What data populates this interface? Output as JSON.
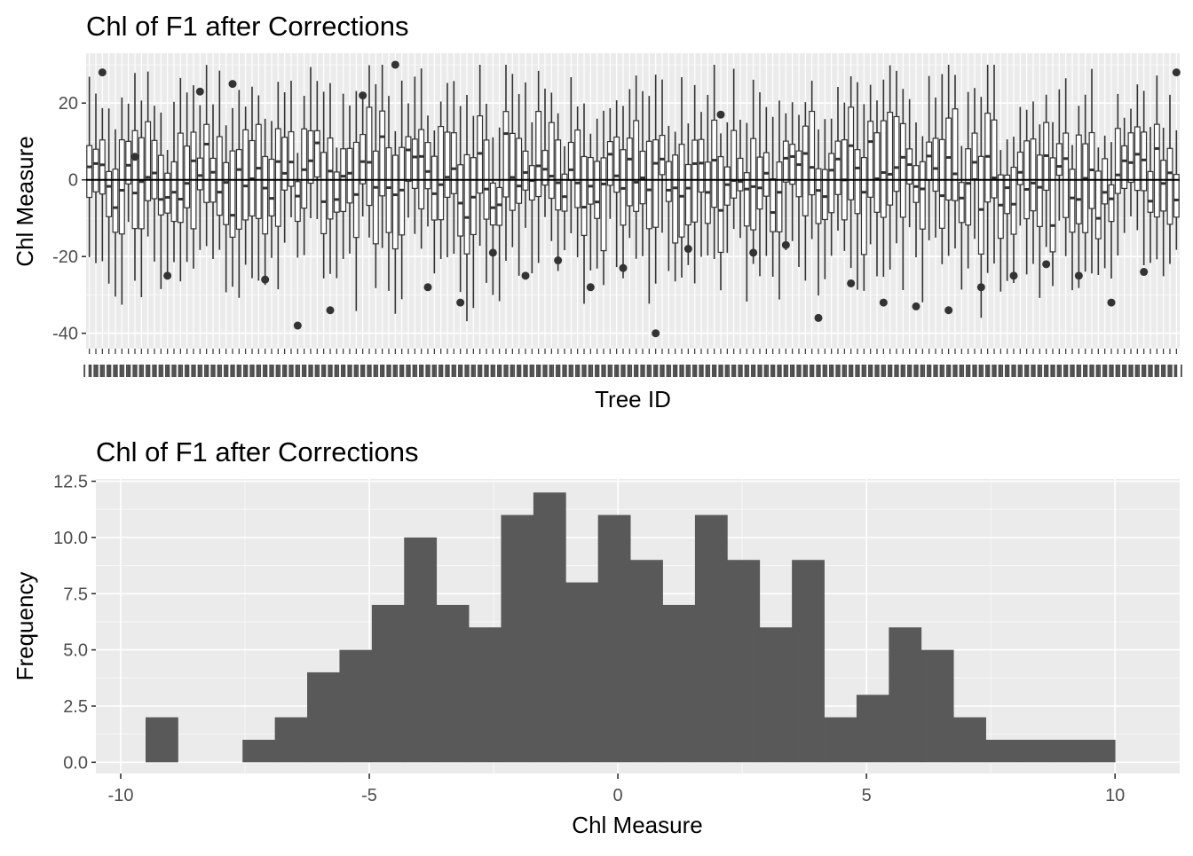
{
  "chart_data": [
    {
      "type": "boxplot",
      "title": "Chl of F1 after Corrections",
      "xlabel": "Tree ID",
      "ylabel": "Chl Measure",
      "ylim": [
        -44,
        33
      ],
      "yticks": [
        -40,
        -20,
        0,
        20
      ],
      "ytick_labels": [
        "-40",
        "-20",
        "0",
        "20"
      ],
      "reference_line_y": 0,
      "category_count": 168,
      "category_label_text": "III",
      "grid": true,
      "legend": "none",
      "outliers_sample": [
        28,
        6,
        -25,
        23,
        25,
        -26,
        -38,
        -34,
        22,
        30,
        -28,
        -32,
        -19,
        -25,
        -21,
        -28,
        -23,
        -40,
        -18,
        17,
        -19,
        -17,
        -36,
        -27,
        -32,
        -33,
        -34,
        -28,
        -25,
        -22,
        -25,
        -32,
        -24
      ]
    },
    {
      "type": "histogram",
      "title": "Chl of F1 after Corrections",
      "xlabel": "Chl Measure",
      "ylabel": "Frequency",
      "xlim": [
        -10.5,
        11.3
      ],
      "ylim": [
        -0.5,
        12.6
      ],
      "xticks": [
        -10,
        -5,
        0,
        5,
        10
      ],
      "xtick_labels": [
        "-10",
        "-5",
        "0",
        "5",
        "10"
      ],
      "yticks": [
        0,
        2.5,
        5,
        7.5,
        10,
        12.5
      ],
      "ytick_labels": [
        "0.0",
        "2.5",
        "5.0",
        "7.5",
        "10.0",
        "12.5"
      ],
      "bar_color": "#595959",
      "grid": true,
      "legend": "none",
      "bins": [
        {
          "x0": -9.5,
          "x1": -8.85,
          "count": 2
        },
        {
          "x0": -8.85,
          "x1": -8.2,
          "count": 0
        },
        {
          "x0": -8.2,
          "x1": -7.55,
          "count": 0
        },
        {
          "x0": -7.55,
          "x1": -6.9,
          "count": 1
        },
        {
          "x0": -6.9,
          "x1": -6.25,
          "count": 2
        },
        {
          "x0": -6.25,
          "x1": -5.6,
          "count": 4
        },
        {
          "x0": -5.6,
          "x1": -4.95,
          "count": 5
        },
        {
          "x0": -4.95,
          "x1": -4.3,
          "count": 7
        },
        {
          "x0": -4.3,
          "x1": -3.65,
          "count": 10
        },
        {
          "x0": -3.65,
          "x1": -3.0,
          "count": 7
        },
        {
          "x0": -3.0,
          "x1": -2.35,
          "count": 6
        },
        {
          "x0": -2.35,
          "x1": -1.7,
          "count": 11
        },
        {
          "x0": -1.7,
          "x1": -1.05,
          "count": 12
        },
        {
          "x0": -1.05,
          "x1": -0.4,
          "count": 8
        },
        {
          "x0": -0.4,
          "x1": 0.25,
          "count": 11
        },
        {
          "x0": 0.25,
          "x1": 0.9,
          "count": 9
        },
        {
          "x0": 0.9,
          "x1": 1.55,
          "count": 7
        },
        {
          "x0": 1.55,
          "x1": 2.2,
          "count": 11
        },
        {
          "x0": 2.2,
          "x1": 2.85,
          "count": 9
        },
        {
          "x0": 2.85,
          "x1": 3.5,
          "count": 6
        },
        {
          "x0": 3.5,
          "x1": 4.15,
          "count": 9
        },
        {
          "x0": 4.15,
          "x1": 4.8,
          "count": 2
        },
        {
          "x0": 4.8,
          "x1": 5.45,
          "count": 3
        },
        {
          "x0": 5.45,
          "x1": 6.1,
          "count": 6
        },
        {
          "x0": 6.1,
          "x1": 6.75,
          "count": 5
        },
        {
          "x0": 6.75,
          "x1": 7.4,
          "count": 2
        },
        {
          "x0": 7.4,
          "x1": 8.05,
          "count": 1
        },
        {
          "x0": 8.05,
          "x1": 8.7,
          "count": 1
        },
        {
          "x0": 8.7,
          "x1": 9.35,
          "count": 1
        },
        {
          "x0": 9.35,
          "x1": 10.0,
          "count": 1
        }
      ]
    }
  ]
}
